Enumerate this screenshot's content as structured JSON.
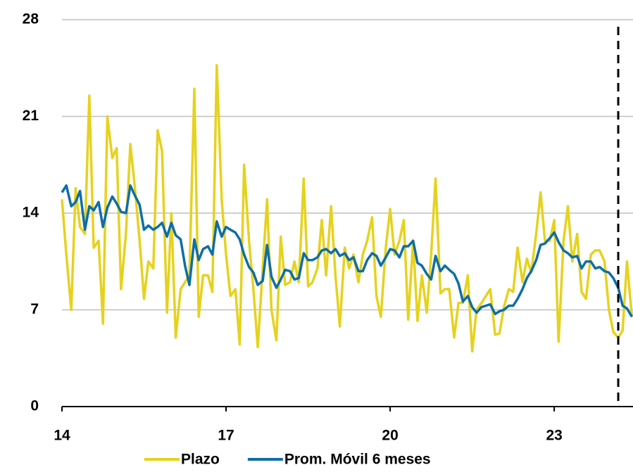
{
  "chart_data": {
    "type": "line",
    "x": [
      14,
      14.08,
      14.17,
      14.25,
      14.33,
      14.42,
      14.5,
      14.58,
      14.67,
      14.75,
      14.83,
      14.92,
      15,
      15.08,
      15.17,
      15.25,
      15.33,
      15.42,
      15.5,
      15.58,
      15.67,
      15.75,
      15.83,
      15.92,
      16,
      16.08,
      16.17,
      16.25,
      16.33,
      16.42,
      16.5,
      16.58,
      16.67,
      16.75,
      16.83,
      16.92,
      17,
      17.08,
      17.17,
      17.25,
      17.33,
      17.42,
      17.5,
      17.58,
      17.67,
      17.75,
      17.83,
      17.92,
      18,
      18.08,
      18.17,
      18.25,
      18.33,
      18.42,
      18.5,
      18.58,
      18.67,
      18.75,
      18.83,
      18.92,
      19,
      19.08,
      19.17,
      19.25,
      19.33,
      19.42,
      19.5,
      19.58,
      19.67,
      19.75,
      19.83,
      19.92,
      20,
      20.08,
      20.17,
      20.25,
      20.33,
      20.42,
      20.5,
      20.58,
      20.67,
      20.75,
      20.83,
      20.92,
      21,
      21.08,
      21.17,
      21.25,
      21.33,
      21.42,
      21.5,
      21.58,
      21.67,
      21.75,
      21.83,
      21.92,
      22,
      22.08,
      22.17,
      22.25,
      22.33,
      22.42,
      22.5,
      22.58,
      22.67,
      22.75,
      22.83,
      22.92,
      23,
      23.08,
      23.17,
      23.25,
      23.33,
      23.42,
      23.5,
      23.58,
      23.67,
      23.75,
      23.83,
      23.92,
      24,
      24.08,
      24.17,
      24.25,
      24.33,
      24.42
    ],
    "series": [
      {
        "name": "Plazo",
        "color": "#e6d21e",
        "values": [
          15,
          11,
          7,
          15.8,
          13,
          12.5,
          22.5,
          11.5,
          12,
          6,
          21,
          18,
          18.7,
          8.5,
          12.5,
          19,
          16,
          12,
          7.8,
          10.5,
          10,
          20,
          18.5,
          6.8,
          14,
          5,
          8.5,
          9,
          9.5,
          23,
          6.5,
          9.5,
          9.5,
          8.3,
          24.7,
          15,
          11,
          8,
          8.5,
          4.5,
          17.5,
          12,
          8.5,
          4.3,
          10,
          15,
          7,
          4.8,
          12.3,
          8.8,
          9,
          10.5,
          9,
          16.5,
          8.7,
          9,
          10,
          13.5,
          9.5,
          14.5,
          9.5,
          5.8,
          11.5,
          10,
          11,
          9,
          11,
          12,
          13.7,
          8,
          6.5,
          11.5,
          14.3,
          11,
          12,
          13.5,
          6.3,
          12,
          6.2,
          9.5,
          6.8,
          11,
          16.5,
          8.2,
          8.5,
          8.5,
          5,
          7.5,
          7.5,
          9.5,
          4,
          7,
          7.5,
          8,
          8.5,
          5.2,
          5.3,
          7.2,
          8.5,
          8.3,
          11.5,
          9,
          10.7,
          9.7,
          12.5,
          15.5,
          12,
          12,
          13.5,
          4.7,
          12,
          14.5,
          10.5,
          12.5,
          8.3,
          7.8,
          11,
          11.3,
          11.3,
          10.5,
          7,
          5.4,
          5,
          5.5,
          10.5,
          6.5
        ]
      },
      {
        "name": "Prom. Móvil 6 meses",
        "color": "#0e6ea6",
        "values": [
          15.5,
          16,
          14.5,
          14.8,
          15.6,
          12.8,
          14.5,
          14.2,
          14.8,
          13,
          14.4,
          15.2,
          14.7,
          14.1,
          14,
          16,
          15.3,
          14.6,
          12.8,
          13.1,
          12.8,
          13,
          13.3,
          12.3,
          13.3,
          12.4,
          12.1,
          10.2,
          8.8,
          12.1,
          10.6,
          11.4,
          11.6,
          11,
          13.4,
          12.3,
          13,
          12.8,
          12.6,
          12.1,
          11,
          10.1,
          9.7,
          8.8,
          9.1,
          11.7,
          9.4,
          8.6,
          9.2,
          9.9,
          9.8,
          9.2,
          9.3,
          11.1,
          10.6,
          10.6,
          10.8,
          11.3,
          11.4,
          11.1,
          11.4,
          10.9,
          11.1,
          10.6,
          10.8,
          9.8,
          9.8,
          10.6,
          11.1,
          10.9,
          10.2,
          10.8,
          11.4,
          11.3,
          10.8,
          11.6,
          11.6,
          12,
          10.4,
          10.2,
          9.6,
          9.2,
          10.9,
          9.8,
          10.2,
          9.9,
          9.6,
          8.9,
          7.6,
          8,
          7.2,
          6.8,
          7.2,
          7.3,
          7.4,
          6.7,
          6.9,
          7,
          7.3,
          7.3,
          7.8,
          8.5,
          9.3,
          9.8,
          10.6,
          11.7,
          11.8,
          12.2,
          12.6,
          11.9,
          11.3,
          11.1,
          10.8,
          10.9,
          10,
          10.5,
          10.5,
          10,
          10.1,
          9.8,
          9.7,
          9.3,
          8.6,
          7.3,
          7.1,
          6.5
        ]
      }
    ],
    "xlim": [
      14,
      24.44
    ],
    "xticks": [
      14,
      17,
      20,
      23
    ],
    "ylim": [
      0,
      28
    ],
    "yticks": [
      0,
      7,
      14,
      21,
      28
    ],
    "grid": true,
    "vline": 24.17,
    "legend": "bottom"
  }
}
